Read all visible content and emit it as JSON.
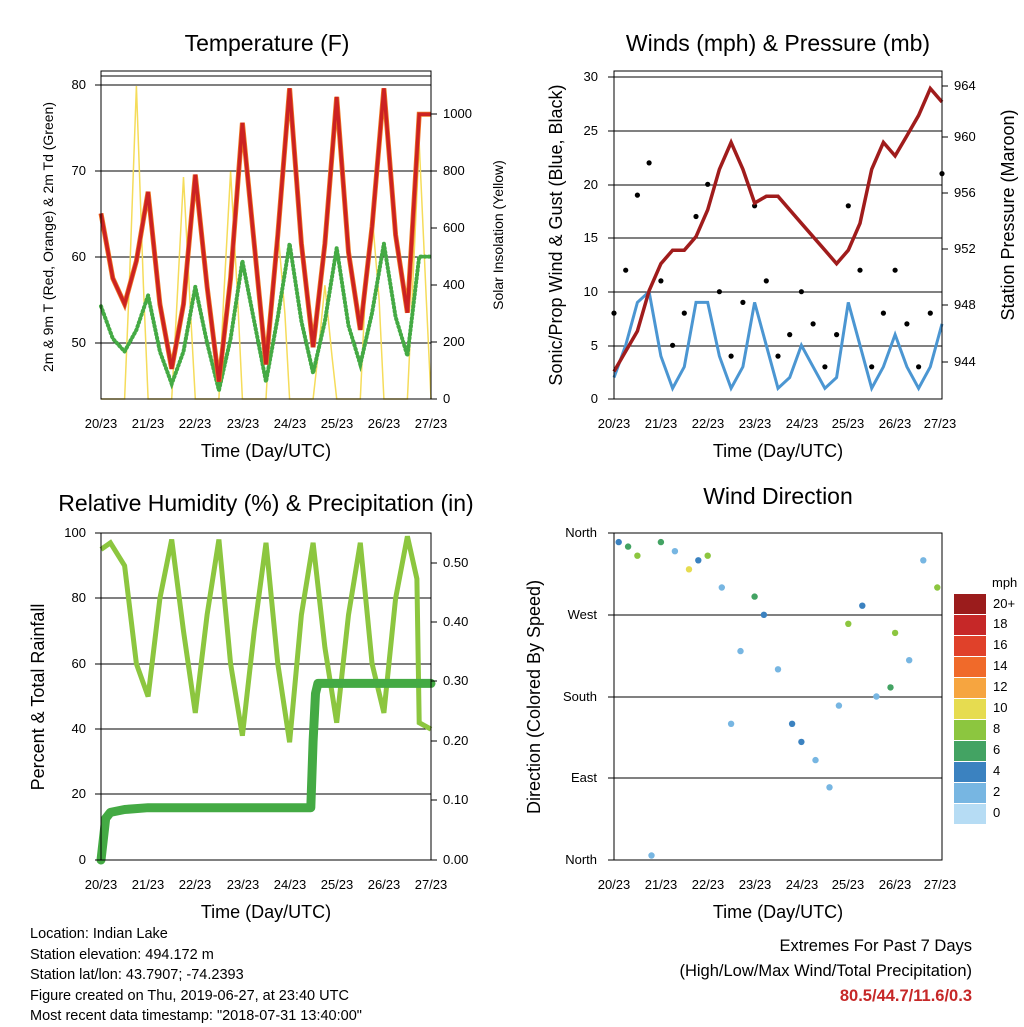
{
  "colors": {
    "temp_2m": "#cc2222",
    "temp_9m": "#ee7722",
    "dewpoint": "#44aa44",
    "solar": "#f5dc5a",
    "wind_sonic": "#4b96d2",
    "gust": "#000000",
    "pressure": "#a01c1c",
    "rh": "#8cc63f",
    "precip": "#44aa44"
  },
  "x_axis": {
    "label": "Time (Day/UTC)",
    "ticks": [
      "20/23",
      "21/23",
      "22/23",
      "23/23",
      "24/23",
      "25/23",
      "26/23",
      "27/23"
    ]
  },
  "panels": {
    "temperature": {
      "title": "Temperature (F)",
      "ylabel_left": "2m & 9m T (Red, Orange) & 2m Td (Green)",
      "ylabel_right": "Solar Insolation (Yellow)",
      "yticks_left": [
        "50",
        "60",
        "70",
        "80"
      ],
      "yticks_right": [
        "0",
        "200",
        "400",
        "600",
        "800",
        "1000"
      ]
    },
    "winds": {
      "title": "Winds (mph) & Pressure (mb)",
      "ylabel_left": "Sonic/Prop Wind & Gust (Blue, Black)",
      "ylabel_right": "Station Pressure (Maroon)",
      "yticks_left": [
        "0",
        "5",
        "10",
        "15",
        "20",
        "25",
        "30"
      ],
      "yticks_right": [
        "944",
        "948",
        "952",
        "956",
        "960",
        "964"
      ]
    },
    "humidity": {
      "title": "Relative Humidity (%) & Precipitation (in)",
      "ylabel_left": "Percent & Total Rainfall",
      "yticks_left": [
        "0",
        "20",
        "40",
        "60",
        "80",
        "100"
      ],
      "yticks_right": [
        "0.00",
        "0.10",
        "0.20",
        "0.30",
        "0.40",
        "0.50"
      ]
    },
    "direction": {
      "title": "Wind Direction",
      "ylabel_left": "Direction (Colored By Speed)",
      "yticks_left": [
        "North",
        "East",
        "South",
        "West",
        "North"
      ],
      "legend_title": "mph",
      "legend_labels": [
        "20+",
        "18",
        "16",
        "14",
        "12",
        "10",
        "8",
        "6",
        "4",
        "2",
        "0"
      ],
      "legend_colors": [
        "#9b1c1c",
        "#c62828",
        "#e0412a",
        "#f06a2a",
        "#f6a540",
        "#e6dc50",
        "#8cc63f",
        "#43a363",
        "#3b82c0",
        "#77b6e2",
        "#b6dcf4"
      ]
    }
  },
  "footer": {
    "location": "Location: Indian Lake",
    "elevation": "Station elevation: 494.172 m",
    "latlon": "Station lat/lon: 43.7907; -74.2393",
    "created": "Figure created on Thu, 2019-06-27, at 23:40 UTC",
    "recent": "Most recent data timestamp: \"2018-07-31 13:40:00\""
  },
  "extremes": {
    "title": "Extremes For Past 7 Days",
    "subtitle": "(High/Low/Max Wind/Total Precipitation)",
    "values": "80.5/44.7/11.6/0.3"
  },
  "chart_data": [
    {
      "type": "line",
      "title": "Temperature (F)",
      "xlabel": "Time (Day/UTC)",
      "ylabel": "2m & 9m T (Red, Orange) & 2m Td (Green)",
      "y2label": "Solar Insolation (Yellow)",
      "xlim": [
        0,
        7
      ],
      "ylim": [
        44,
        82
      ],
      "y2lim": [
        0,
        1100
      ],
      "series": [
        {
          "name": "2m T",
          "axis": "left",
          "x": [
            0,
            0.25,
            0.5,
            0.75,
            1,
            1.25,
            1.5,
            1.75,
            2,
            2.25,
            2.5,
            2.75,
            3,
            3.25,
            3.5,
            3.75,
            4,
            4.25,
            4.5,
            4.75,
            5,
            5.25,
            5.5,
            5.75,
            6,
            6.25,
            6.5,
            6.75,
            7
          ],
          "y": [
            65.5,
            58,
            55,
            60,
            68,
            55,
            47.5,
            55,
            70,
            57,
            46,
            58,
            76,
            62,
            48,
            63,
            80,
            62,
            50,
            62,
            79,
            61,
            52,
            64,
            80,
            63,
            54,
            77,
            77
          ]
        },
        {
          "name": "Solar Insolation",
          "axis": "right",
          "x": [
            0,
            0.25,
            0.5,
            0.6,
            0.75,
            0.9,
            1,
            1.25,
            1.5,
            1.6,
            1.75,
            1.9,
            2,
            2.25,
            2.5,
            2.6,
            2.75,
            2.9,
            3,
            3.25,
            3.5,
            3.6,
            3.75,
            3.9,
            4,
            4.25,
            4.5,
            4.6,
            4.75,
            4.9,
            5,
            5.25,
            5.5,
            5.6,
            5.75,
            5.9,
            6,
            6.25,
            6.5,
            6.6,
            6.75,
            6.9,
            7
          ],
          "y": [
            0,
            0,
            0,
            400,
            1100,
            400,
            0,
            0,
            0,
            300,
            780,
            300,
            0,
            0,
            0,
            350,
            800,
            350,
            0,
            0,
            0,
            300,
            600,
            300,
            0,
            0,
            0,
            150,
            400,
            150,
            0,
            0,
            0,
            350,
            650,
            350,
            0,
            0,
            0,
            350,
            900,
            350,
            0
          ]
        }
      ]
    },
    {
      "type": "line",
      "title": "Winds (mph) & Pressure (mb)",
      "xlabel": "Time (Day/UTC)",
      "ylabel": "Sonic/Prop Wind & Gust (Blue, Black)",
      "y2label": "Station Pressure (Maroon)",
      "xlim": [
        0,
        7
      ],
      "ylim": [
        0,
        30
      ],
      "y2lim": [
        942,
        965
      ],
      "series": [
        {
          "name": "Station Pressure",
          "axis": "right",
          "x": [
            0,
            0.25,
            0.5,
            0.75,
            1,
            1.25,
            1.5,
            1.75,
            2,
            2.25,
            2.5,
            2.75,
            3,
            3.25,
            3.5,
            3.75,
            4,
            4.25,
            4.5,
            4.75,
            5,
            5.25,
            5.5,
            5.75,
            6,
            6.25,
            6.5,
            6.75,
            7
          ],
          "y": [
            943,
            944.5,
            946,
            949,
            951,
            952,
            952,
            953,
            955,
            958,
            960,
            958,
            955.5,
            956,
            956,
            955,
            954,
            953,
            952,
            951,
            952,
            954,
            958,
            960,
            959,
            960.5,
            962,
            964,
            963
          ]
        },
        {
          "name": "Gust",
          "axis": "left",
          "x": [
            0,
            0.25,
            0.5,
            0.75,
            1,
            1.25,
            1.5,
            1.75,
            2,
            2.25,
            2.5,
            2.75,
            3,
            3.25,
            3.5,
            3.75,
            4,
            4.25,
            4.5,
            4.75,
            5,
            5.25,
            5.5,
            5.75,
            6,
            6.25,
            6.5,
            6.75,
            7
          ],
          "y": [
            8,
            12,
            19,
            22,
            11,
            5,
            8,
            17,
            20,
            10,
            4,
            9,
            18,
            11,
            4,
            6,
            10,
            7,
            3,
            6,
            18,
            12,
            3,
            8,
            12,
            7,
            3,
            8,
            21
          ]
        },
        {
          "name": "Sonic/Prop Wind",
          "axis": "left",
          "x": [
            0,
            0.25,
            0.5,
            0.75,
            1,
            1.25,
            1.5,
            1.75,
            2,
            2.25,
            2.5,
            2.75,
            3,
            3.25,
            3.5,
            3.75,
            4,
            4.25,
            4.5,
            4.75,
            5,
            5.25,
            5.5,
            5.75,
            6,
            6.25,
            6.5,
            6.75,
            7
          ],
          "y": [
            2,
            5,
            9,
            10,
            4,
            1,
            3,
            9,
            9,
            4,
            1,
            3,
            9,
            5,
            1,
            2,
            5,
            3,
            1,
            2,
            9,
            5,
            1,
            3,
            6,
            3,
            1,
            3,
            7
          ]
        }
      ]
    },
    {
      "type": "line",
      "title": "Relative Humidity (%) & Precipitation (in)",
      "xlabel": "Time (Day/UTC)",
      "ylabel": "Percent & Total Rainfall",
      "xlim": [
        0,
        7
      ],
      "ylim": [
        0,
        100
      ],
      "y2lim": [
        0,
        0.55
      ],
      "series": [
        {
          "name": "Relative Humidity",
          "axis": "left",
          "x": [
            0,
            0.2,
            0.5,
            0.75,
            1,
            1.25,
            1.5,
            1.75,
            2,
            2.25,
            2.5,
            2.75,
            3,
            3.25,
            3.5,
            3.75,
            4,
            4.25,
            4.5,
            4.75,
            5,
            5.25,
            5.5,
            5.75,
            6,
            6.25,
            6.5,
            6.7,
            6.75,
            7
          ],
          "y": [
            95,
            97,
            90,
            60,
            50,
            80,
            98,
            70,
            45,
            75,
            98,
            60,
            38,
            70,
            97,
            60,
            36,
            75,
            97,
            65,
            42,
            75,
            97,
            60,
            45,
            80,
            99,
            86,
            42,
            40
          ]
        },
        {
          "name": "Total Precipitation",
          "axis": "right",
          "x": [
            0,
            0.1,
            0.2,
            0.5,
            1,
            2,
            3,
            4,
            4.45,
            4.5,
            4.55,
            4.6,
            5,
            6,
            7
          ],
          "y": [
            0,
            0.07,
            0.08,
            0.085,
            0.088,
            0.088,
            0.088,
            0.088,
            0.088,
            0.2,
            0.28,
            0.297,
            0.297,
            0.297,
            0.297
          ]
        }
      ]
    },
    {
      "type": "scatter",
      "title": "Wind Direction",
      "xlabel": "Time (Day/UTC)",
      "ylabel": "Direction (Colored By Speed)",
      "xlim": [
        0,
        7
      ],
      "ylim": [
        0,
        360
      ],
      "y_categories": [
        "North",
        "East",
        "South",
        "West",
        "North"
      ],
      "legend_title": "mph",
      "series": [
        {
          "name": "Wind direction",
          "x": [
            0.1,
            0.3,
            0.5,
            0.8,
            1.0,
            1.3,
            1.6,
            1.8,
            2.0,
            2.3,
            2.5,
            2.7,
            3.0,
            3.2,
            3.5,
            3.8,
            4.0,
            4.3,
            4.6,
            4.8,
            5.0,
            5.3,
            5.6,
            5.9,
            6.0,
            6.3,
            6.6,
            6.9
          ],
          "y": [
            350,
            345,
            335,
            5,
            350,
            340,
            320,
            330,
            335,
            300,
            150,
            230,
            290,
            270,
            210,
            150,
            130,
            110,
            80,
            170,
            260,
            280,
            180,
            190,
            250,
            220,
            330,
            300
          ],
          "speed": [
            4,
            6,
            8,
            2,
            6,
            2,
            10,
            4,
            8,
            2,
            1,
            2,
            6,
            4,
            2,
            4,
            3,
            2,
            1,
            2,
            8,
            4,
            2,
            6,
            8,
            2,
            2,
            8
          ]
        }
      ]
    }
  ]
}
